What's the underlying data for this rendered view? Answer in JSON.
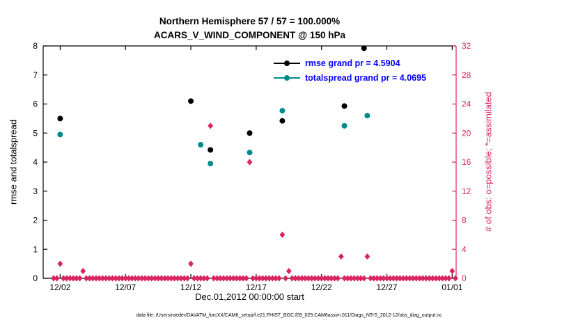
{
  "header": {
    "title_line1": "Northern Hemisphere 57 / 57 = 100.000%",
    "title_line2": "ACARS_V_WIND_COMPONENT @ 150 hPa"
  },
  "legend": {
    "text_color": "#0000ff",
    "items": [
      {
        "name": "rmse",
        "label": "rmse grand pr = 4.5904",
        "color": "#000000"
      },
      {
        "name": "totalspread",
        "label": "totalspread grand pr = 4.0695",
        "color": "#008b8b"
      }
    ]
  },
  "axes": {
    "left_label": "rmse and totalspread",
    "right_label": "# of obs: o=possible; *=assimilated",
    "x_label": "Dec.01,2012 00:00:00 start"
  },
  "footer": {
    "data_file": "data file: /Users/raeder/DAI/ATM_forcXX/CAM6_setup/f.e21.FHIST_BGC.f09_025.CAM6assim.011/Diags_NTrS_2012-12/obs_diag_output.nc"
  },
  "chart_data": {
    "type": "scatter",
    "title": "Northern Hemisphere 57 / 57 = 100.000% | ACARS_V_WIND_COMPONENT @ 150 hPa",
    "x_axis": {
      "label": "Dec.01,2012 00:00:00 start",
      "range": [
        -0.3,
        31.3
      ],
      "units": "days since Dec.01,2012 00:00:00",
      "ticks": [
        {
          "value": 1,
          "label": "12/02"
        },
        {
          "value": 6,
          "label": "12/07"
        },
        {
          "value": 11,
          "label": "12/12"
        },
        {
          "value": 16,
          "label": "12/17"
        },
        {
          "value": 21,
          "label": "12/22"
        },
        {
          "value": 26,
          "label": "12/27"
        },
        {
          "value": 31,
          "label": "01/01"
        }
      ]
    },
    "y_left": {
      "label": "rmse and totalspread",
      "range": [
        0,
        8
      ],
      "ticks": [
        0,
        1,
        2,
        3,
        4,
        5,
        6,
        7,
        8
      ],
      "color": "#000000"
    },
    "y_right": {
      "label": "# of obs: o=possible; *=assimilated",
      "range": [
        0,
        32
      ],
      "ticks": [
        0,
        4,
        8,
        12,
        16,
        20,
        24,
        28,
        32
      ],
      "color": "#d8245f"
    },
    "series": [
      {
        "name": "rmse",
        "axis": "left",
        "color": "#000000",
        "marker": "circle",
        "grand_mean": 4.5904,
        "points": [
          {
            "x": 1.0,
            "y": 5.5
          },
          {
            "x": 11.0,
            "y": 6.1
          },
          {
            "x": 12.5,
            "y": 4.42
          },
          {
            "x": 15.5,
            "y": 5.0
          },
          {
            "x": 18.0,
            "y": 5.42
          },
          {
            "x": 22.75,
            "y": 5.93
          },
          {
            "x": 24.25,
            "y": 7.92
          }
        ]
      },
      {
        "name": "totalspread",
        "axis": "left",
        "color": "#008b8b",
        "marker": "circle",
        "grand_mean": 4.0695,
        "points": [
          {
            "x": 1.0,
            "y": 4.95
          },
          {
            "x": 11.75,
            "y": 4.6
          },
          {
            "x": 12.5,
            "y": 3.95
          },
          {
            "x": 15.5,
            "y": 4.33
          },
          {
            "x": 18.0,
            "y": 5.77
          },
          {
            "x": 22.75,
            "y": 5.25
          },
          {
            "x": 24.5,
            "y": 5.6
          }
        ]
      }
    ],
    "obs_counts": {
      "name": "num_obs",
      "axis": "right",
      "color": "#d8245f",
      "marker": "diamond",
      "nonzero_points": [
        {
          "x": 1.0,
          "y": 2
        },
        {
          "x": 2.75,
          "y": 1
        },
        {
          "x": 11.0,
          "y": 2
        },
        {
          "x": 12.5,
          "y": 21
        },
        {
          "x": 15.5,
          "y": 16
        },
        {
          "x": 18.0,
          "y": 6
        },
        {
          "x": 18.5,
          "y": 1
        },
        {
          "x": 22.5,
          "y": 3
        },
        {
          "x": 24.5,
          "y": 3
        },
        {
          "x": 31.0,
          "y": 1
        }
      ],
      "zero_run": {
        "start": 0.5,
        "end": 31.25,
        "step": 0.25,
        "value": 0
      }
    }
  }
}
